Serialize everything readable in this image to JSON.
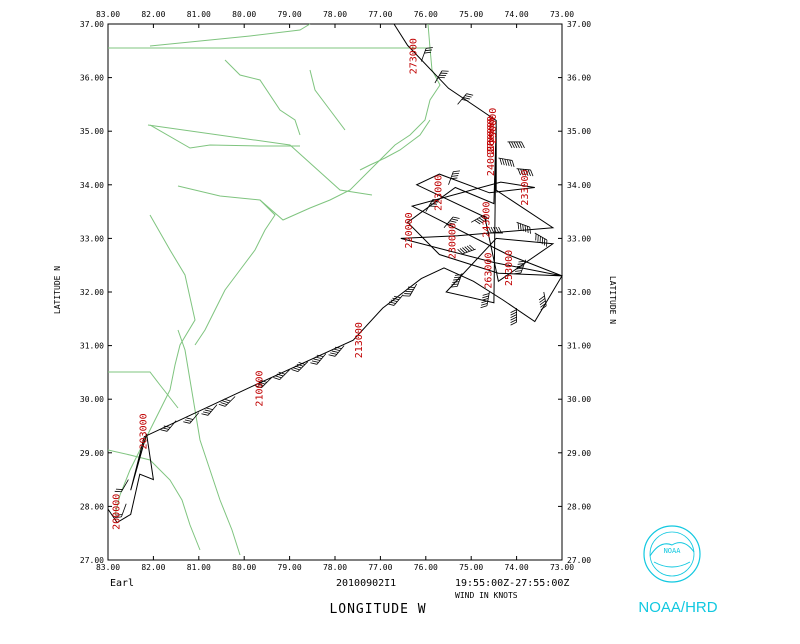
{
  "map": {
    "lon_min": -83.0,
    "lon_max": -73.0,
    "lat_min": 27.0,
    "lat_max": 37.0,
    "lon_ticks": [
      "83.00",
      "82.00",
      "81.00",
      "80.00",
      "79.00",
      "78.00",
      "77.00",
      "76.00",
      "75.00",
      "74.00",
      "73.00"
    ],
    "lat_ticks": [
      "27.00",
      "28.00",
      "29.00",
      "30.00",
      "31.00",
      "32.00",
      "33.00",
      "34.00",
      "35.00",
      "36.00",
      "37.00"
    ],
    "ylabel_left": "LATITUDE  N",
    "ylabel_right": "LATITUDE  N",
    "xlabel": "LONGITUDE  W",
    "storm_name": "Earl",
    "flight_id": "20100902I1",
    "time_range": "19:55:00Z-27:55:00Z",
    "units_note": "WIND IN KNOTS",
    "logo_text": "NOAA/HRD",
    "logo_inner": "NOAA",
    "colors": {
      "coast": "#7fc47f",
      "time_labels": "#c00000",
      "logo": "#11c8e0"
    }
  },
  "time_labels": [
    {
      "text": "200000",
      "lon": -82.75,
      "lat": 27.9
    },
    {
      "text": "203000",
      "lon": -82.15,
      "lat": 29.4
    },
    {
      "text": "210000",
      "lon": -79.6,
      "lat": 30.2
    },
    {
      "text": "213000",
      "lon": -77.4,
      "lat": 31.1
    },
    {
      "text": "220000",
      "lon": -76.3,
      "lat": 33.15
    },
    {
      "text": "223000",
      "lon": -75.65,
      "lat": 33.85
    },
    {
      "text": "230000",
      "lon": -75.35,
      "lat": 32.95
    },
    {
      "text": "233000",
      "lon": -73.75,
      "lat": 33.95
    },
    {
      "text": "240000",
      "lon": -74.5,
      "lat": 34.5
    },
    {
      "text": "243000",
      "lon": -74.6,
      "lat": 33.35
    },
    {
      "text": "250000",
      "lon": -74.45,
      "lat": 35.1
    },
    {
      "text": "253000",
      "lon": -74.1,
      "lat": 32.45
    },
    {
      "text": "260000",
      "lon": -74.5,
      "lat": 34.95
    },
    {
      "text": "263000",
      "lon": -74.55,
      "lat": 32.4
    },
    {
      "text": "270000",
      "lon": -74.5,
      "lat": 34.9
    },
    {
      "text": "273000",
      "lon": -76.2,
      "lat": 36.4
    }
  ],
  "track": [
    [
      -83.0,
      27.95
    ],
    [
      -82.8,
      27.7
    ],
    [
      -82.5,
      27.85
    ],
    [
      -82.3,
      28.6
    ],
    [
      -82.0,
      28.5
    ],
    [
      -82.15,
      29.35
    ],
    [
      -82.5,
      28.3
    ],
    [
      -82.2,
      29.3
    ],
    [
      -79.8,
      30.25
    ],
    [
      -77.6,
      31.1
    ],
    [
      -76.95,
      31.7
    ],
    [
      -76.1,
      32.25
    ],
    [
      -75.6,
      32.45
    ],
    [
      -74.95,
      32.2
    ],
    [
      -74.3,
      31.85
    ],
    [
      -73.6,
      31.45
    ],
    [
      -73.0,
      32.3
    ],
    [
      -74.4,
      32.35
    ],
    [
      -75.7,
      32.7
    ],
    [
      -76.4,
      33.3
    ],
    [
      -75.35,
      33.95
    ],
    [
      -74.5,
      33.65
    ],
    [
      -74.45,
      35.1
    ],
    [
      -74.45,
      33.9
    ],
    [
      -73.2,
      33.2
    ],
    [
      -75.3,
      33.05
    ],
    [
      -76.55,
      33.0
    ],
    [
      -74.5,
      32.55
    ],
    [
      -73.0,
      32.3
    ],
    [
      -74.2,
      32.7
    ],
    [
      -76.3,
      33.6
    ],
    [
      -74.35,
      34.05
    ],
    [
      -73.6,
      33.95
    ],
    [
      -74.6,
      33.85
    ],
    [
      -75.7,
      34.2
    ],
    [
      -76.2,
      34.0
    ],
    [
      -74.7,
      33.4
    ],
    [
      -74.4,
      32.2
    ],
    [
      -73.2,
      32.9
    ],
    [
      -74.45,
      33.0
    ],
    [
      -75.55,
      32.0
    ],
    [
      -74.5,
      31.8
    ],
    [
      -74.45,
      35.2
    ],
    [
      -75.5,
      35.8
    ],
    [
      -76.4,
      36.6
    ],
    [
      -76.7,
      37.0
    ]
  ],
  "barbs": [
    {
      "lon": -82.6,
      "lat": 28.05,
      "dir": 200,
      "spd": 20
    },
    {
      "lon": -82.55,
      "lat": 28.5,
      "dir": 210,
      "spd": 20
    },
    {
      "lon": -81.5,
      "lat": 29.6,
      "dir": 220,
      "spd": 30
    },
    {
      "lon": -81.0,
      "lat": 29.75,
      "dir": 220,
      "spd": 30
    },
    {
      "lon": -80.6,
      "lat": 29.9,
      "dir": 220,
      "spd": 35
    },
    {
      "lon": -80.2,
      "lat": 30.05,
      "dir": 225,
      "spd": 35
    },
    {
      "lon": -79.4,
      "lat": 30.4,
      "dir": 225,
      "spd": 40
    },
    {
      "lon": -79.0,
      "lat": 30.55,
      "dir": 225,
      "spd": 40
    },
    {
      "lon": -78.6,
      "lat": 30.7,
      "dir": 225,
      "spd": 45
    },
    {
      "lon": -78.2,
      "lat": 30.85,
      "dir": 220,
      "spd": 45
    },
    {
      "lon": -77.8,
      "lat": 31.0,
      "dir": 220,
      "spd": 45
    },
    {
      "lon": -76.5,
      "lat": 31.95,
      "dir": 220,
      "spd": 45
    },
    {
      "lon": -76.2,
      "lat": 32.15,
      "dir": 210,
      "spd": 50
    },
    {
      "lon": -75.2,
      "lat": 32.35,
      "dir": 200,
      "spd": 60
    },
    {
      "lon": -74.6,
      "lat": 32.0,
      "dir": 190,
      "spd": 70
    },
    {
      "lon": -74.0,
      "lat": 31.7,
      "dir": 180,
      "spd": 60
    },
    {
      "lon": -73.4,
      "lat": 32.0,
      "dir": 170,
      "spd": 50
    },
    {
      "lon": -73.6,
      "lat": 33.1,
      "dir": 120,
      "spd": 60
    },
    {
      "lon": -74.0,
      "lat": 33.3,
      "dir": 110,
      "spd": 70
    },
    {
      "lon": -74.4,
      "lat": 34.5,
      "dir": 100,
      "spd": 60
    },
    {
      "lon": -74.2,
      "lat": 34.8,
      "dir": 90,
      "spd": 55
    },
    {
      "lon": -74.0,
      "lat": 34.3,
      "dir": 95,
      "spd": 55
    },
    {
      "lon": -75.0,
      "lat": 33.3,
      "dir": 60,
      "spd": 50
    },
    {
      "lon": -75.6,
      "lat": 33.2,
      "dir": 40,
      "spd": 45
    },
    {
      "lon": -76.0,
      "lat": 33.5,
      "dir": 30,
      "spd": 40
    },
    {
      "lon": -75.5,
      "lat": 34.0,
      "dir": 20,
      "spd": 40
    },
    {
      "lon": -74.9,
      "lat": 32.8,
      "dir": 250,
      "spd": 60
    },
    {
      "lon": -74.3,
      "lat": 33.1,
      "dir": 270,
      "spd": 60
    },
    {
      "lon": -73.8,
      "lat": 32.6,
      "dir": 200,
      "spd": 55
    },
    {
      "lon": -75.8,
      "lat": 35.9,
      "dir": 30,
      "spd": 35
    },
    {
      "lon": -76.1,
      "lat": 36.3,
      "dir": 20,
      "spd": 30
    },
    {
      "lon": -75.3,
      "lat": 35.5,
      "dir": 40,
      "spd": 40
    }
  ]
}
